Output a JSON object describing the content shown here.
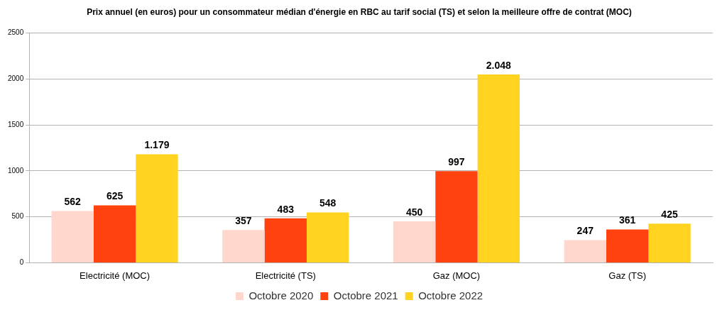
{
  "chart_data": {
    "type": "bar",
    "title": "Prix annuel (en euros) pour un consommateur médian d'énergie en RBC au tarif social (TS) et selon la meilleure offre de contrat (MOC)",
    "categories": [
      "Electricité (MOC)",
      "Electricité (TS)",
      "Gaz (MOC)",
      "Gaz (TS)"
    ],
    "series": [
      {
        "name": "Octobre 2020",
        "color": "#ffd7cc",
        "values": [
          562,
          357,
          450,
          247
        ]
      },
      {
        "name": "Octobre 2021",
        "color": "#ff420e",
        "values": [
          625,
          483,
          997,
          361
        ]
      },
      {
        "name": "Octobre 2022",
        "color": "#ffd320",
        "values": [
          1179,
          548,
          2048,
          425
        ],
        "value_labels": [
          "1.179",
          "548",
          "2.048",
          "425"
        ]
      }
    ],
    "ylim": [
      0,
      2500
    ],
    "yticks": [
      0,
      500,
      1000,
      1500,
      2000,
      2500
    ],
    "grid": true,
    "legend": "bottom",
    "data_labels": true
  }
}
